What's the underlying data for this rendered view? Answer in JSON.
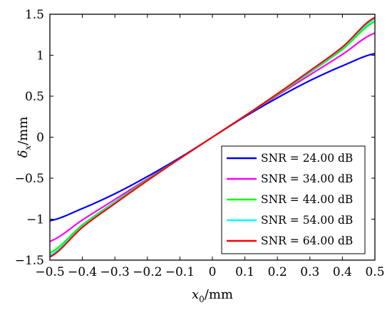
{
  "chart_data": {
    "type": "line",
    "xlabel": {
      "base": "x",
      "sub": "0",
      "unit": "/mm"
    },
    "ylabel": {
      "base": "δ",
      "sub": "x",
      "unit": "/mm"
    },
    "xlim": [
      -0.5,
      0.5
    ],
    "ylim": [
      -1.5,
      1.5
    ],
    "xticks": [
      "−0.5",
      "−0.4",
      "−0.3",
      "−0.2",
      "−0.1",
      "0",
      "0.1",
      "0.2",
      "0.3",
      "0.4",
      "0.5"
    ],
    "yticks": [
      "−1.5",
      "−1",
      "−0.5",
      "0",
      "0.5",
      "1",
      "1.5"
    ],
    "legend_position": "bottom-right",
    "grid": false,
    "x": [
      -0.5,
      -0.4,
      -0.3,
      -0.2,
      -0.1,
      0,
      0.1,
      0.2,
      0.3,
      0.4,
      0.5
    ],
    "series": [
      {
        "name": "SNR = 24.00 dB",
        "color": "#0000ff",
        "values": [
          -1.02,
          -0.87,
          -0.69,
          -0.48,
          -0.25,
          0,
          0.25,
          0.48,
          0.69,
          0.87,
          1.02
        ]
      },
      {
        "name": "SNR = 34.00 dB",
        "color": "#ff00ff",
        "values": [
          -1.27,
          -1.01,
          -0.76,
          -0.51,
          -0.26,
          0,
          0.26,
          0.51,
          0.76,
          1.01,
          1.27
        ]
      },
      {
        "name": "SNR = 44.00 dB",
        "color": "#00ff00",
        "values": [
          -1.41,
          -1.07,
          -0.79,
          -0.52,
          -0.26,
          0,
          0.26,
          0.52,
          0.79,
          1.07,
          1.41
        ]
      },
      {
        "name": "SNR = 54.00 dB",
        "color": "#00ffff",
        "values": [
          -1.44,
          -1.09,
          -0.8,
          -0.53,
          -0.26,
          0,
          0.26,
          0.53,
          0.8,
          1.09,
          1.44
        ]
      },
      {
        "name": "SNR = 64.00 dB",
        "color": "#ff0000",
        "values": [
          -1.46,
          -1.1,
          -0.81,
          -0.53,
          -0.26,
          0,
          0.26,
          0.53,
          0.81,
          1.1,
          1.46
        ]
      }
    ]
  }
}
